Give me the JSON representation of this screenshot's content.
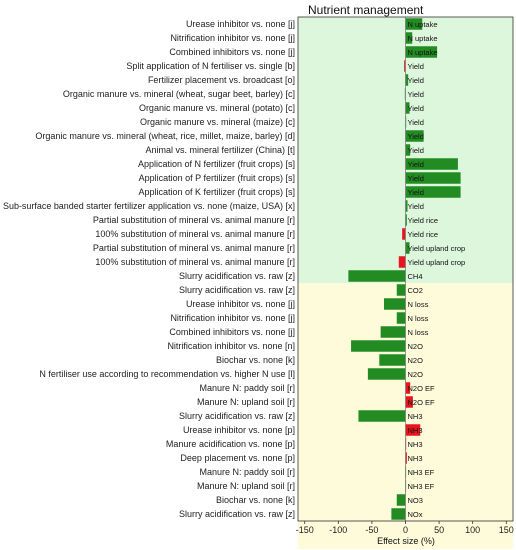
{
  "chart_data": {
    "type": "bar",
    "orientation": "horizontal",
    "title": "Nutrient management",
    "xlabel": "Effect size (%)",
    "xlim": [
      -160,
      160
    ],
    "xticks": [
      -150,
      -100,
      -50,
      0,
      50,
      100,
      150
    ],
    "grid": false,
    "colors": {
      "positive": "#228B22",
      "negative": "#E8141E",
      "green_zone": "#DDF7DD",
      "yellow_zone": "#FDFBD9"
    },
    "zones": [
      {
        "from_row": 0,
        "to_row": 18,
        "color": "green_zone"
      },
      {
        "from_row": 19,
        "to_row": 37,
        "color": "yellow_zone"
      }
    ],
    "rows": [
      {
        "label": "Urease inhibitor vs. none [j]",
        "metric": "N uptake",
        "value": 25,
        "color": "positive"
      },
      {
        "label": "Nitrification inhibitor vs. none [j]",
        "metric": "N uptake",
        "value": 10,
        "color": "positive"
      },
      {
        "label": "Combined inhibitors vs. none [j]",
        "metric": "N uptake",
        "value": 47,
        "color": "positive"
      },
      {
        "label": "Split application of N fertiliser vs. single [b]",
        "metric": "Yield",
        "value": -2,
        "color": "negative"
      },
      {
        "label": "Fertilizer placement vs. broadcast [o]",
        "metric": "Yield",
        "value": 4,
        "color": "positive"
      },
      {
        "label": "Organic manure vs. mineral (wheat, sugar beet, barley) [c]",
        "metric": "Yield",
        "value": -1,
        "color": "positive"
      },
      {
        "label": "Organic manure vs. mineral (potato) [c]",
        "metric": "Yield",
        "value": 6,
        "color": "positive"
      },
      {
        "label": "Organic manure vs. mineral (maize) [c]",
        "metric": "Yield",
        "value": 1,
        "color": "positive"
      },
      {
        "label": "Organic manure vs. mineral (wheat, rice, millet, maize, barley) [d]",
        "metric": "Yield",
        "value": 27,
        "color": "positive"
      },
      {
        "label": "Animal vs. mineral fertilizer (China) [t]",
        "metric": "Yield",
        "value": 7,
        "color": "positive"
      },
      {
        "label": "Application of N fertilizer (fruit crops) [s]",
        "metric": "Yield",
        "value": 78,
        "color": "positive"
      },
      {
        "label": "Application of P fertilizer (fruit crops) [s]",
        "metric": "Yield",
        "value": 82,
        "color": "positive"
      },
      {
        "label": "Application of K fertilizer (fruit crops) [s]",
        "metric": "Yield",
        "value": 82,
        "color": "positive"
      },
      {
        "label": "Sub-surface banded starter fertilizer application vs. none (maize, USA) [x]",
        "metric": "Yield",
        "value": 3,
        "color": "positive"
      },
      {
        "label": "Partial substitution of mineral vs. animal manure [r]",
        "metric": "Yield rice",
        "value": 2,
        "color": "positive"
      },
      {
        "label": "100% substitution of mineral vs. animal manure [r]",
        "metric": "Yield rice",
        "value": -5,
        "color": "negative"
      },
      {
        "label": "Partial substitution of mineral vs. animal manure [r]",
        "metric": "Yield upland crop",
        "value": 6,
        "color": "positive"
      },
      {
        "label": "100% substitution of mineral vs. animal manure [r]",
        "metric": "Yield upland crop",
        "value": -10,
        "color": "negative"
      },
      {
        "label": "Slurry acidification vs. raw [z]",
        "metric": "CH4",
        "value": -85,
        "color": "positive"
      },
      {
        "label": "Slurry acidification vs. raw [z]",
        "metric": "CO2",
        "value": -13,
        "color": "positive"
      },
      {
        "label": "Urease inhibitor vs. none [j]",
        "metric": "N loss",
        "value": -32,
        "color": "positive"
      },
      {
        "label": "Nitrification inhibitor vs. none [j]",
        "metric": "N loss",
        "value": -13,
        "color": "positive"
      },
      {
        "label": "Combined inhibitors vs. none [j]",
        "metric": "N loss",
        "value": -37,
        "color": "positive"
      },
      {
        "label": "Nitrification inhibitor vs. none [n]",
        "metric": "N2O",
        "value": -81,
        "color": "positive"
      },
      {
        "label": "Biochar vs. none [k]",
        "metric": "N2O",
        "value": -39,
        "color": "positive"
      },
      {
        "label": "N fertiliser use according to recommendation vs. higher N use [l]",
        "metric": "N2O",
        "value": -56,
        "color": "positive"
      },
      {
        "label": "Manure N: paddy soil [r]",
        "metric": "N2O EF",
        "value": 7,
        "color": "negative"
      },
      {
        "label": "Manure N: upland soil [r]",
        "metric": "N2O EF",
        "value": 11,
        "color": "negative"
      },
      {
        "label": "Slurry acidification vs. raw [z]",
        "metric": "NH3",
        "value": -70,
        "color": "positive"
      },
      {
        "label": "Urease inhibitor vs. none [p]",
        "metric": "NH3",
        "value": 22,
        "color": "negative"
      },
      {
        "label": "Manure acidification vs. none [p]",
        "metric": "NH3",
        "value": 1,
        "color": "negative"
      },
      {
        "label": "Deep placement vs. none [p]",
        "metric": "NH3",
        "value": 2,
        "color": "negative"
      },
      {
        "label": "Manure N: paddy soil [r]",
        "metric": "NH3 EF",
        "value": 0,
        "color": "positive"
      },
      {
        "label": "Manure N: upland soil [r]",
        "metric": "NH3 EF",
        "value": 0,
        "color": "positive"
      },
      {
        "label": "Biochar vs. none [k]",
        "metric": "NO3",
        "value": -13,
        "color": "positive"
      },
      {
        "label": "Slurry acidification vs. raw [z]",
        "metric": "NOx",
        "value": -21,
        "color": "positive"
      }
    ]
  }
}
